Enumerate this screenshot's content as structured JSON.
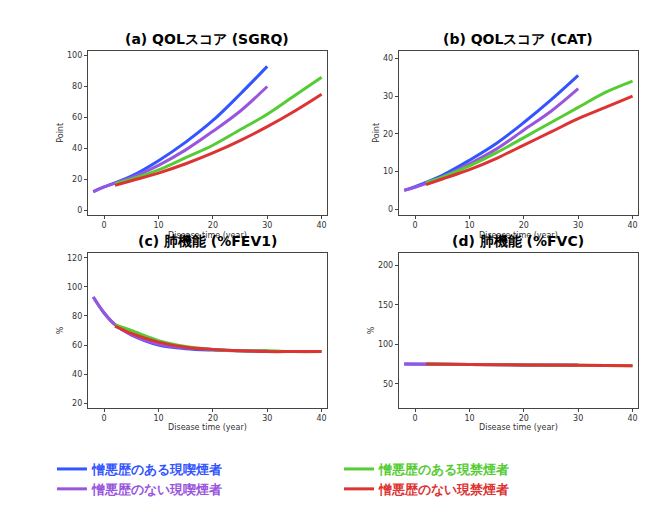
{
  "chart_data": [
    {
      "type": "line",
      "title": "(a) QOLスコア (SGRQ)",
      "xlabel": "Disease time (year)",
      "ylabel": "Point",
      "xlim": [
        -3,
        41
      ],
      "xticks": [
        0,
        10,
        20,
        30,
        40
      ],
      "ylim": [
        -3,
        103
      ],
      "yticks": [
        0,
        20,
        40,
        60,
        80,
        100
      ],
      "grid": false,
      "legend": "bottom",
      "series": [
        {
          "name": "憎悪歴のある現喫煙者",
          "color": "#3355ff",
          "x": [
            -2,
            0,
            5,
            10,
            15,
            20,
            25,
            30
          ],
          "values": [
            12,
            15,
            22,
            32,
            44,
            58,
            75,
            93
          ]
        },
        {
          "name": "憎悪歴のない現喫煙者",
          "color": "#9955dd",
          "x": [
            -2,
            0,
            5,
            10,
            15,
            20,
            25,
            30
          ],
          "values": [
            12,
            15,
            21,
            29,
            39,
            51,
            64,
            80
          ]
        },
        {
          "name": "憎悪歴のある現禁煙者",
          "color": "#55cc33",
          "x": [
            2,
            5,
            10,
            15,
            20,
            25,
            30,
            35,
            40
          ],
          "values": [
            17,
            20,
            26,
            34,
            42,
            52,
            62,
            74,
            86
          ]
        },
        {
          "name": "憎悪歴のない現禁煙者",
          "color": "#dd3333",
          "x": [
            2,
            5,
            10,
            15,
            20,
            25,
            30,
            35,
            40
          ],
          "values": [
            16,
            19,
            24,
            30,
            37,
            45,
            54,
            64,
            75
          ]
        }
      ]
    },
    {
      "type": "line",
      "title": "(b) QOLスコア (CAT)",
      "xlabel": "Disease time (year)",
      "ylabel": "Point",
      "xlim": [
        -3,
        41
      ],
      "xticks": [
        0,
        10,
        20,
        30,
        40
      ],
      "ylim": [
        -1.5,
        42
      ],
      "yticks": [
        0,
        10,
        20,
        30,
        40
      ],
      "grid": false,
      "legend": "bottom",
      "series": [
        {
          "name": "憎悪歴のある現喫煙者",
          "color": "#3355ff",
          "x": [
            -2,
            0,
            5,
            10,
            15,
            20,
            25,
            30
          ],
          "values": [
            5,
            6,
            9,
            13,
            17.5,
            23,
            29,
            35.5
          ]
        },
        {
          "name": "憎悪歴のない現喫煙者",
          "color": "#9955dd",
          "x": [
            -2,
            0,
            5,
            10,
            15,
            20,
            25,
            30
          ],
          "values": [
            5,
            5.8,
            8.5,
            12,
            16,
            21,
            26,
            32
          ]
        },
        {
          "name": "憎悪歴のある現禁煙者",
          "color": "#55cc33",
          "x": [
            2,
            5,
            10,
            15,
            20,
            25,
            30,
            35,
            40
          ],
          "values": [
            7,
            8.5,
            11.5,
            15,
            19,
            23,
            27,
            31,
            34
          ]
        },
        {
          "name": "憎悪歴のない現禁煙者",
          "color": "#dd3333",
          "x": [
            2,
            5,
            10,
            15,
            20,
            25,
            30,
            35,
            40
          ],
          "values": [
            6.5,
            8,
            10.5,
            13.5,
            17,
            20.5,
            24,
            27,
            30
          ]
        }
      ]
    },
    {
      "type": "line",
      "title": "(c) 肺機能 (%FEV1)",
      "xlabel": "Disease time (year)",
      "ylabel": "%",
      "xlim": [
        -3,
        41
      ],
      "xticks": [
        0,
        10,
        20,
        30,
        40
      ],
      "ylim": [
        17,
        123
      ],
      "yticks": [
        20,
        40,
        60,
        80,
        100,
        120
      ],
      "grid": false,
      "legend": "bottom",
      "series": [
        {
          "name": "憎悪歴のある現喫煙者",
          "color": "#3355ff",
          "x": [
            -2,
            0,
            2,
            5,
            10,
            15,
            20,
            25,
            30
          ],
          "values": [
            93,
            82,
            74,
            67,
            60,
            57.5,
            56.5,
            56,
            56
          ]
        },
        {
          "name": "憎悪歴のない現喫煙者",
          "color": "#9955dd",
          "x": [
            -2,
            0,
            2,
            5,
            10,
            15,
            20,
            25,
            30
          ],
          "values": [
            93,
            82,
            74,
            67,
            60.5,
            58,
            57,
            56,
            56
          ]
        },
        {
          "name": "憎悪歴のある現禁煙者",
          "color": "#55cc33",
          "x": [
            2,
            5,
            10,
            15,
            20,
            25,
            30,
            35,
            40
          ],
          "values": [
            74,
            70,
            63,
            59,
            57,
            56,
            56,
            55.5,
            55.5
          ]
        },
        {
          "name": "憎悪歴のない現禁煙者",
          "color": "#dd3333",
          "x": [
            2,
            5,
            10,
            15,
            20,
            25,
            30,
            35,
            40
          ],
          "values": [
            73,
            68,
            62,
            58.5,
            57,
            56,
            55.5,
            55.5,
            55.5
          ]
        }
      ]
    },
    {
      "type": "line",
      "title": "(d) 肺機能 (%FVC)",
      "xlabel": "Disease time (year)",
      "ylabel": "%",
      "xlim": [
        -3,
        41
      ],
      "xticks": [
        0,
        10,
        20,
        30,
        40
      ],
      "ylim": [
        20,
        215
      ],
      "yticks": [
        50,
        100,
        150,
        200
      ],
      "grid": false,
      "legend": "bottom",
      "series": [
        {
          "name": "憎悪歴のある現喫煙者",
          "color": "#3355ff",
          "x": [
            -2,
            10,
            20,
            30
          ],
          "values": [
            75,
            74.5,
            74,
            73.5
          ]
        },
        {
          "name": "憎悪歴のない現喫煙者",
          "color": "#9955dd",
          "x": [
            -2,
            10,
            20,
            30
          ],
          "values": [
            75,
            74.5,
            74,
            74
          ]
        },
        {
          "name": "憎悪歴のある現禁煙者",
          "color": "#55cc33",
          "x": [
            2,
            10,
            20,
            30,
            40
          ],
          "values": [
            75,
            74.5,
            74,
            73.5,
            73
          ]
        },
        {
          "name": "憎悪歴のない現禁煙者",
          "color": "#dd3333",
          "x": [
            2,
            10,
            20,
            30,
            40
          ],
          "values": [
            75,
            74.5,
            74,
            73.5,
            73
          ]
        }
      ]
    }
  ]
}
